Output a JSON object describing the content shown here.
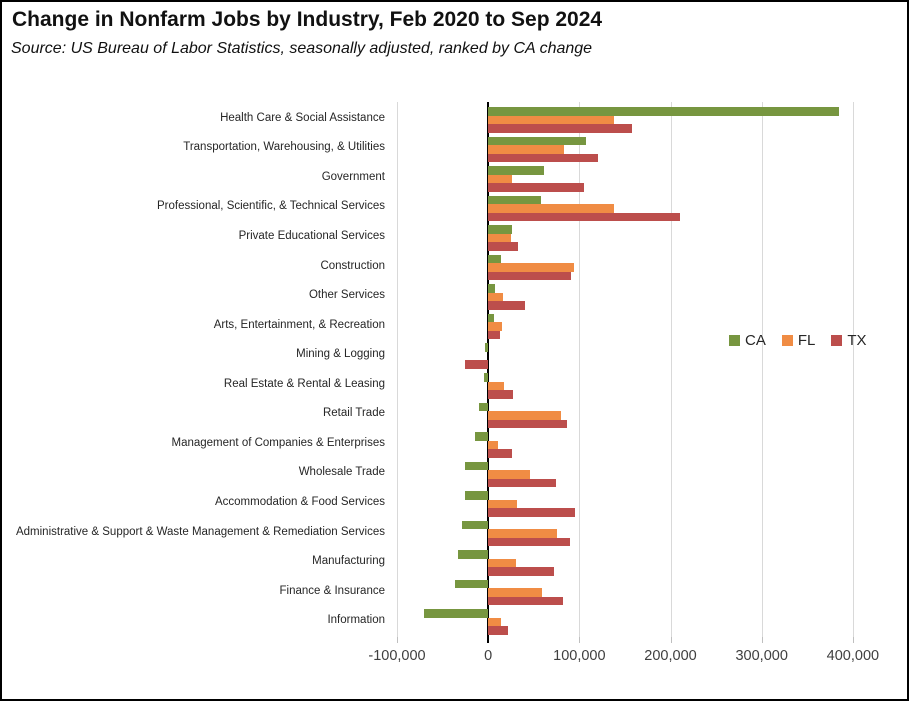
{
  "header": {
    "title": "Change in Nonfarm Jobs by Industry, Feb 2020 to Sep 2024",
    "subtitle": "Source:  US Bureau of Labor Statistics, seasonally adjusted, ranked by CA change"
  },
  "colors": {
    "ca_green": "#779640",
    "fl_orange": "#F08C44",
    "tx_red": "#BC4E4C",
    "gridline": "#D9D9D9",
    "zero_axis": "#000000"
  },
  "chart_data": {
    "type": "bar",
    "orientation": "horizontal",
    "title": "Change in Nonfarm Jobs by Industry, Feb 2020 to Sep 2024",
    "subtitle": "Source:  US Bureau of Labor Statistics, seasonally adjusted, ranked by CA change",
    "xlabel": "",
    "ylabel": "",
    "grid": "vertical",
    "legend_position": "middle-right",
    "xlim": [
      -100000,
      410000
    ],
    "x_ticks": [
      {
        "value": -100000,
        "label": "-100,000"
      },
      {
        "value": 0,
        "label": "0"
      },
      {
        "value": 100000,
        "label": "100,000"
      },
      {
        "value": 200000,
        "label": "200,000"
      },
      {
        "value": 300000,
        "label": "300,000"
      },
      {
        "value": 400000,
        "label": "400,000"
      }
    ],
    "categories": [
      "Health Care & Social Assistance",
      "Transportation, Warehousing, & Utilities",
      "Government",
      "Professional, Scientific, & Technical Services",
      "Private Educational Services",
      "Construction",
      "Other Services",
      "Arts, Entertainment, & Recreation",
      "Mining & Logging",
      "Real Estate & Rental & Leasing",
      "Retail Trade",
      "Management of Companies & Enterprises",
      "Wholesale Trade",
      "Accommodation & Food Services",
      "Administrative & Support & Waste Management & Remediation Services",
      "Manufacturing",
      "Finance & Insurance",
      "Information"
    ],
    "series": [
      {
        "name": "CA",
        "color": "#779640",
        "values": [
          385000,
          107000,
          61000,
          58000,
          26000,
          14000,
          7000,
          6000,
          -3000,
          -5000,
          -10000,
          -15000,
          -25000,
          -25000,
          -29000,
          -33000,
          -36000,
          -70000
        ]
      },
      {
        "name": "FL",
        "color": "#F08C44",
        "values": [
          138000,
          83000,
          26000,
          138000,
          25000,
          94000,
          16000,
          15000,
          0,
          17000,
          80000,
          11000,
          46000,
          32000,
          76000,
          31000,
          59000,
          14000
        ]
      },
      {
        "name": "TX",
        "color": "#BC4E4C",
        "values": [
          158000,
          120000,
          105000,
          210000,
          33000,
          91000,
          40000,
          13000,
          -25000,
          27000,
          87000,
          26000,
          74000,
          95000,
          90000,
          72000,
          82000,
          22000
        ]
      }
    ]
  }
}
